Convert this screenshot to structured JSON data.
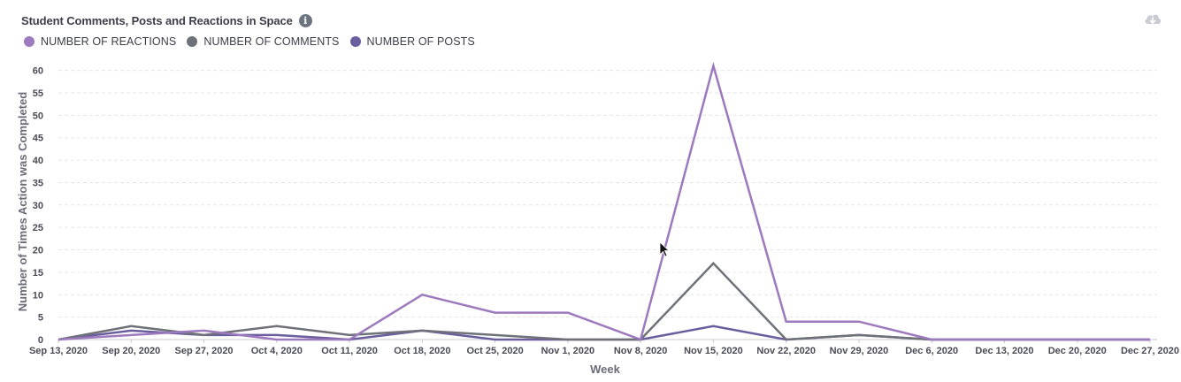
{
  "header": {
    "title": "Student Comments, Posts and Reactions in Space",
    "info_icon": "info-icon",
    "download_icon": "cloud-download-icon"
  },
  "colors": {
    "reactions": "#9d79bd",
    "comments": "#6e7278",
    "posts": "#6a5e9e",
    "grid": "#e6e6ea",
    "axis": "#c9c9d2"
  },
  "chart_data": {
    "type": "line",
    "title": "Student Comments, Posts and Reactions in Space",
    "xlabel": "Week",
    "ylabel": "Number of Times Action was Completed",
    "x": [
      "Sep 13, 2020",
      "Sep 20, 2020",
      "Sep 27, 2020",
      "Oct 4, 2020",
      "Oct 11, 2020",
      "Oct 18, 2020",
      "Oct 25, 2020",
      "Nov 1, 2020",
      "Nov 8, 2020",
      "Nov 15, 2020",
      "Nov 22, 2020",
      "Nov 29, 2020",
      "Dec 6, 2020",
      "Dec 13, 2020",
      "Dec 20, 2020",
      "Dec 27, 2020"
    ],
    "yticks": [
      0,
      5,
      10,
      15,
      20,
      25,
      30,
      35,
      40,
      45,
      50,
      55,
      60
    ],
    "ylim": [
      0,
      60
    ],
    "grid": true,
    "legend_position": "top-left",
    "series": [
      {
        "name": "NUMBER OF REACTIONS",
        "values": [
          0,
          1,
          2,
          0,
          0,
          10,
          6,
          6,
          0,
          61,
          4,
          4,
          0,
          0,
          0,
          0
        ]
      },
      {
        "name": "NUMBER OF COMMENTS",
        "values": [
          0,
          3,
          1,
          3,
          1,
          2,
          1,
          0,
          0,
          17,
          0,
          1,
          0,
          0,
          0,
          0
        ]
      },
      {
        "name": "NUMBER OF POSTS",
        "values": [
          0,
          2,
          1,
          1,
          0,
          2,
          0,
          0,
          0,
          3,
          0,
          1,
          0,
          0,
          0,
          0
        ]
      }
    ]
  }
}
